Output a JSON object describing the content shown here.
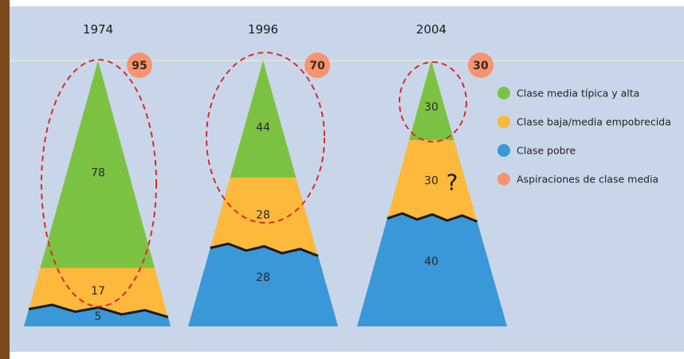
{
  "chart_data": {
    "type": "bar",
    "categories": [
      "1974",
      "1996",
      "2004"
    ],
    "series": [
      {
        "name": "Clase media típica y alta",
        "color": "#7cc242",
        "values": [
          78,
          44,
          30
        ]
      },
      {
        "name": "Clase baja/media empobrecida",
        "color": "#fcb93b",
        "values": [
          17,
          28,
          30
        ]
      },
      {
        "name": "Clase pobre",
        "color": "#3a97d8",
        "values": [
          5,
          28,
          40
        ]
      }
    ],
    "aspirations": {
      "name": "Aspiraciones de clase media",
      "color": "#f7946f",
      "values": [
        95,
        70,
        30
      ]
    },
    "annotation": "?",
    "legend_position": "right"
  }
}
